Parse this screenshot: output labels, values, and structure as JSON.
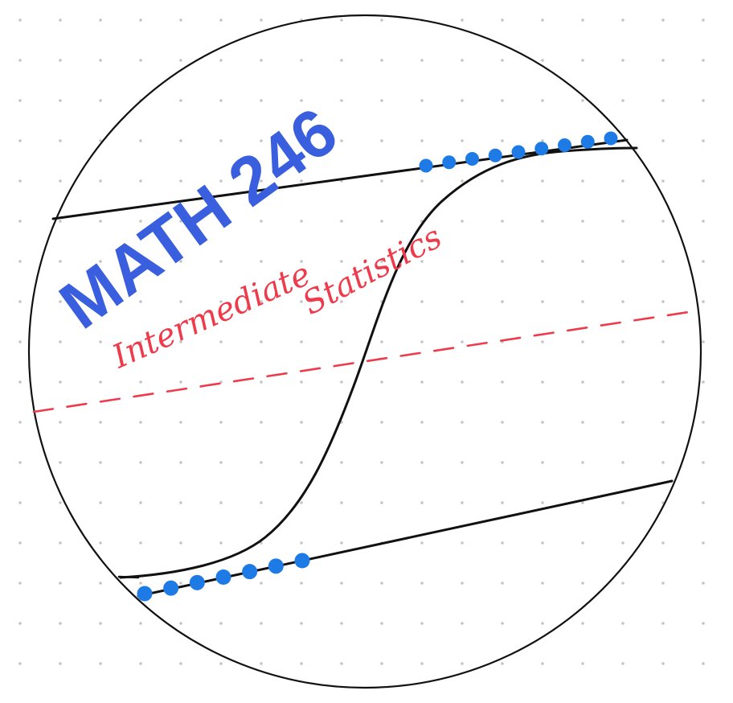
{
  "course": {
    "code": "MATH 246",
    "subtitle_word_1": "Intermediate",
    "subtitle_word_2": "Statistics"
  },
  "colors": {
    "background": "#ffffff",
    "grid_dot": "#c4c4c4",
    "ink": "#111111",
    "title_blue": "#3a5fde",
    "dot_blue": "#1e7be6",
    "script_red": "#ee3b4b",
    "midline_red": "#ee3b4b"
  },
  "icons": {
    "logo": "circle-with-s-curve-and-asymptotes"
  }
}
